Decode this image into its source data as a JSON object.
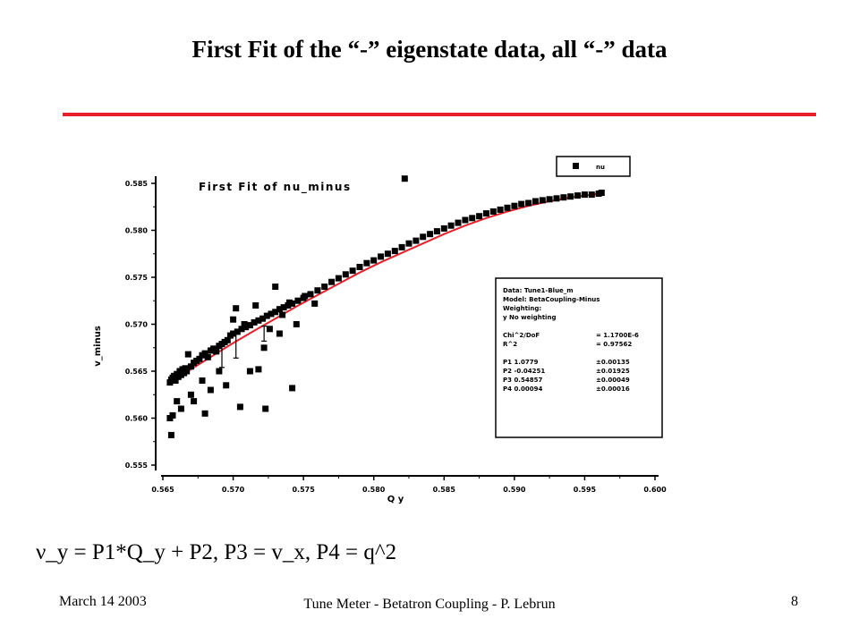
{
  "slide": {
    "title": "First Fit of the “-” eigenstate data, all “-” data",
    "rule_color": "#e8202a",
    "formula": "ν_y = P1*Q_y + P2,  P3 = v_x,  P4 = q^2",
    "footer": {
      "date": "March 14  2003",
      "title": "Tune Meter - Betatron Coupling - P. Lebrun",
      "page": "8"
    }
  },
  "chart_data": {
    "type": "scatter",
    "title": "First Fit of nu_minus",
    "xlabel": "Q y",
    "ylabel": "v_minus",
    "xlim": [
      0.565,
      0.6
    ],
    "ylim": [
      0.555,
      0.585
    ],
    "xticks": [
      "0.565",
      "0.570",
      "0.575",
      "0.580",
      "0.585",
      "0.590",
      "0.595",
      "0.600"
    ],
    "yticks": [
      "0.555",
      "0.560",
      "0.565",
      "0.570",
      "0.575",
      "0.580",
      "0.585"
    ],
    "grid": false,
    "legend_position": "top-right",
    "legend": [
      "nu"
    ],
    "colors": {
      "points": "#000000",
      "fit": "#e8202a"
    },
    "series": [
      {
        "name": "nu",
        "kind": "points",
        "x": [
          0.5655,
          0.5656,
          0.5657,
          0.5658,
          0.5659,
          0.566,
          0.5661,
          0.5662,
          0.5663,
          0.5664,
          0.5665,
          0.5666,
          0.5667,
          0.567,
          0.5672,
          0.5674,
          0.5676,
          0.5678,
          0.568,
          0.5682,
          0.5684,
          0.5686,
          0.5688,
          0.569,
          0.5692,
          0.5694,
          0.5696,
          0.5698,
          0.57,
          0.5703,
          0.5706,
          0.5709,
          0.5712,
          0.5715,
          0.5718,
          0.5721,
          0.5724,
          0.5727,
          0.573,
          0.5733,
          0.5736,
          0.5739,
          0.5742,
          0.5746,
          0.575,
          0.5755,
          0.576,
          0.5765,
          0.577,
          0.5775,
          0.578,
          0.5785,
          0.579,
          0.5795,
          0.58,
          0.5805,
          0.581,
          0.5815,
          0.582,
          0.5825,
          0.583,
          0.5835,
          0.584,
          0.5845,
          0.585,
          0.5855,
          0.586,
          0.5865,
          0.587,
          0.5875,
          0.588,
          0.5885,
          0.589,
          0.5895,
          0.59,
          0.5905,
          0.591,
          0.5915,
          0.592,
          0.5925,
          0.593,
          0.5935,
          0.594,
          0.5945,
          0.595,
          0.5955,
          0.596,
          0.5962,
          0.5655,
          0.5657,
          0.5656,
          0.5663,
          0.567,
          0.5672,
          0.568,
          0.5684,
          0.569,
          0.57,
          0.5702,
          0.5708,
          0.5712,
          0.5716,
          0.5722,
          0.5726,
          0.573,
          0.5735,
          0.574,
          0.5745,
          0.5751,
          0.5758,
          0.566,
          0.5668,
          0.5678,
          0.5695,
          0.5705,
          0.5718,
          0.5723,
          0.5733,
          0.5742,
          0.5822
        ],
        "y": [
          0.5638,
          0.5641,
          0.5643,
          0.5645,
          0.564,
          0.5647,
          0.5644,
          0.565,
          0.5646,
          0.5652,
          0.5648,
          0.5653,
          0.565,
          0.5655,
          0.5659,
          0.5661,
          0.5663,
          0.5667,
          0.5669,
          0.5665,
          0.5672,
          0.5674,
          0.5671,
          0.5677,
          0.5679,
          0.5681,
          0.5683,
          0.5688,
          0.569,
          0.5692,
          0.5695,
          0.5697,
          0.5699,
          0.5702,
          0.5704,
          0.5706,
          0.5709,
          0.5711,
          0.5713,
          0.5716,
          0.5718,
          0.572,
          0.5722,
          0.5725,
          0.5728,
          0.5732,
          0.5736,
          0.574,
          0.5745,
          0.5749,
          0.5753,
          0.5757,
          0.5761,
          0.5765,
          0.5768,
          0.5772,
          0.5775,
          0.5778,
          0.5782,
          0.5786,
          0.5789,
          0.5793,
          0.5796,
          0.5799,
          0.5802,
          0.5805,
          0.5808,
          0.5811,
          0.5813,
          0.5815,
          0.5818,
          0.582,
          0.5822,
          0.5824,
          0.5826,
          0.5828,
          0.5829,
          0.5831,
          0.5832,
          0.5833,
          0.5834,
          0.5835,
          0.5836,
          0.5837,
          0.5838,
          0.5838,
          0.5839,
          0.584,
          0.56,
          0.5603,
          0.5582,
          0.561,
          0.5625,
          0.5618,
          0.5605,
          0.563,
          0.565,
          0.5705,
          0.5717,
          0.57,
          0.565,
          0.572,
          0.5675,
          0.5695,
          0.574,
          0.571,
          0.5723,
          0.57,
          0.573,
          0.5722,
          0.5618,
          0.5668,
          0.564,
          0.5635,
          0.5612,
          0.5652,
          0.561,
          0.569,
          0.5632,
          0.5855
        ]
      },
      {
        "name": "fit",
        "kind": "line",
        "x": [
          0.5655,
          0.567,
          0.5685,
          0.57,
          0.5715,
          0.573,
          0.5745,
          0.576,
          0.5775,
          0.579,
          0.5805,
          0.582,
          0.5835,
          0.585,
          0.5865,
          0.588,
          0.5895,
          0.591,
          0.5925,
          0.594,
          0.5955,
          0.5962
        ],
        "y": [
          0.5638,
          0.5652,
          0.5666,
          0.568,
          0.5693,
          0.5706,
          0.5719,
          0.5731,
          0.5743,
          0.5755,
          0.5766,
          0.5776,
          0.5786,
          0.5796,
          0.5805,
          0.5813,
          0.582,
          0.5826,
          0.5831,
          0.5835,
          0.5838,
          0.5839
        ]
      }
    ],
    "error_bars": [
      {
        "x": 0.5692,
        "y": 0.5667,
        "low": 0.5654,
        "high": 0.568
      },
      {
        "x": 0.5702,
        "y": 0.5678,
        "low": 0.5664,
        "high": 0.569
      },
      {
        "x": 0.5722,
        "y": 0.569,
        "low": 0.5682,
        "high": 0.5698
      }
    ],
    "stats_box": [
      [
        "Data: Tune1-Blue_m",
        ""
      ],
      [
        "Model: BetaCoupling-Minus",
        ""
      ],
      [
        "Weighting:",
        ""
      ],
      [
        "y          No weighting",
        ""
      ],
      [
        "",
        ""
      ],
      [
        "Chi^2/DoF",
        "= 1.1700E-6"
      ],
      [
        "R^2",
        "= 0.97562"
      ],
      [
        "",
        ""
      ],
      [
        "P1    1.0779",
        "±0.00135"
      ],
      [
        "P2    -0.04251",
        "±0.01925"
      ],
      [
        "P3    0.54857",
        "±0.00049"
      ],
      [
        "P4    0.00094",
        "±0.00016"
      ]
    ]
  }
}
